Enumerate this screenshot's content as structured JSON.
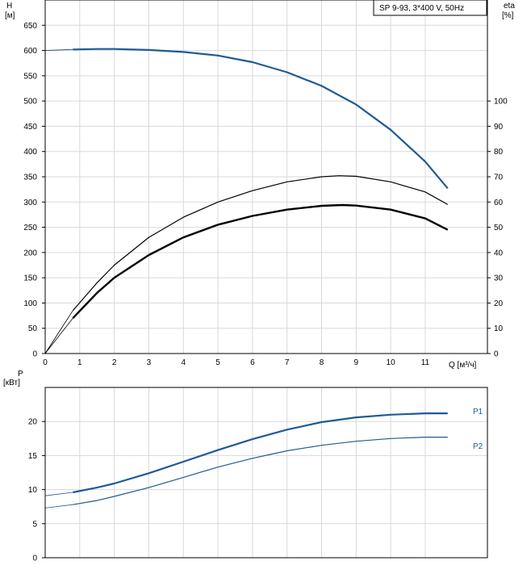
{
  "chart_data": [
    {
      "type": "line",
      "legend_label": "SP 9-93, 3*400 V, 50Hz",
      "legend_position": "top-right",
      "xlabel": "Q [м³/ч]",
      "xlim": [
        0,
        12.8
      ],
      "x_ticks": [
        "0",
        "1",
        "2",
        "3",
        "4",
        "5",
        "6",
        "7",
        "8",
        "9",
        "10",
        "11"
      ],
      "grid": true,
      "y_left": {
        "label": "H",
        "unit": "[м]",
        "ylim": [
          0,
          700
        ],
        "ticks": [
          "0",
          "50",
          "100",
          "150",
          "200",
          "250",
          "300",
          "350",
          "400",
          "450",
          "500",
          "550",
          "600",
          "650"
        ]
      },
      "y_right": {
        "label": "eta",
        "unit": "[%]",
        "ylim": [
          0,
          140
        ],
        "ticks": [
          "0",
          "10",
          "20",
          "30",
          "40",
          "50",
          "60",
          "70",
          "80",
          "90",
          "100"
        ]
      },
      "series": [
        {
          "axis": "left",
          "color": "#1f5a96",
          "width": 2.2,
          "x": [
            0.8,
            1.5,
            2,
            3,
            4,
            5,
            6,
            7,
            8,
            9,
            10,
            11,
            11.65
          ],
          "y": [
            602,
            603,
            603,
            601,
            597,
            590,
            577,
            557,
            530,
            493,
            443,
            380,
            327
          ]
        },
        {
          "axis": "left",
          "color": "#1f5a96",
          "width": 1,
          "x": [
            0,
            0.8
          ],
          "y": [
            600,
            602
          ]
        },
        {
          "axis": "right",
          "color": "#000000",
          "width": 1.2,
          "x": [
            0.8,
            1.5,
            2,
            3,
            4,
            5,
            6,
            7,
            8,
            8.5,
            9,
            10,
            11,
            11.65
          ],
          "y": [
            17,
            28,
            35,
            46,
            54,
            60,
            64.5,
            68,
            70,
            70.4,
            70.2,
            68,
            64,
            59
          ]
        },
        {
          "axis": "right",
          "color": "#000000",
          "width": 0.8,
          "x": [
            0,
            0.4,
            0.8
          ],
          "y": [
            0,
            8.5,
            17
          ]
        },
        {
          "axis": "right",
          "color": "#000000",
          "width": 2.4,
          "x": [
            0.8,
            1.5,
            2,
            3,
            4,
            5,
            6,
            7,
            8,
            8.6,
            9,
            10,
            11,
            11.65
          ],
          "y": [
            14,
            24,
            30,
            39,
            46,
            51,
            54.5,
            57,
            58.5,
            58.8,
            58.6,
            57,
            53.5,
            49
          ]
        },
        {
          "axis": "right",
          "color": "#000000",
          "width": 0.8,
          "x": [
            0,
            0.4,
            0.8
          ],
          "y": [
            0,
            7,
            14
          ]
        }
      ]
    },
    {
      "type": "line",
      "ylabel": "P",
      "yunit": "[кВт]",
      "xlim": [
        0,
        12.8
      ],
      "ylim": [
        0,
        25
      ],
      "y_ticks": [
        "0",
        "5",
        "10",
        "15",
        "20"
      ],
      "grid": true,
      "series": [
        {
          "name": "P1",
          "color": "#1f5a96",
          "width": 2.2,
          "x": [
            0.8,
            1.5,
            2,
            3,
            4,
            5,
            6,
            7,
            8,
            9,
            10,
            11,
            11.65
          ],
          "y": [
            9.6,
            10.3,
            10.9,
            12.4,
            14.1,
            15.8,
            17.4,
            18.8,
            19.9,
            20.6,
            21.0,
            21.2,
            21.2
          ]
        },
        {
          "name": "",
          "color": "#1f5a96",
          "width": 0.8,
          "x": [
            0,
            0.8
          ],
          "y": [
            9.1,
            9.6
          ]
        },
        {
          "name": "P2",
          "color": "#1f5a96",
          "width": 1.2,
          "x": [
            0.8,
            1.5,
            2,
            3,
            4,
            5,
            6,
            7,
            8,
            9,
            10,
            11,
            11.65
          ],
          "y": [
            7.8,
            8.4,
            9.0,
            10.3,
            11.8,
            13.3,
            14.6,
            15.7,
            16.5,
            17.1,
            17.5,
            17.7,
            17.7
          ]
        },
        {
          "name": "",
          "color": "#1f5a96",
          "width": 0.8,
          "x": [
            0,
            0.8
          ],
          "y": [
            7.3,
            7.8
          ]
        }
      ]
    }
  ]
}
